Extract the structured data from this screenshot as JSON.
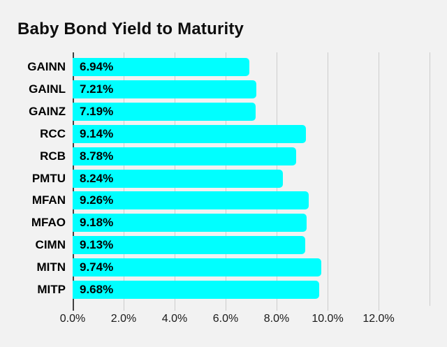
{
  "title": "Baby Bond Yield to Maturity",
  "colors": {
    "background": "#f2f2f2",
    "bar": "#00ffff",
    "gridline": "#cccccc",
    "axis": "#424242",
    "text": "#000000"
  },
  "chart_data": {
    "type": "bar",
    "orientation": "horizontal",
    "title": "Baby Bond Yield to Maturity",
    "categories": [
      "GAINN",
      "GAINL",
      "GAINZ",
      "RCC",
      "RCB",
      "PMTU",
      "MFAN",
      "MFAO",
      "CIMN",
      "MITN",
      "MITP"
    ],
    "values": [
      6.94,
      7.21,
      7.19,
      9.14,
      8.78,
      8.24,
      9.26,
      9.18,
      9.13,
      9.74,
      9.68
    ],
    "value_labels": [
      "6.94%",
      "7.21%",
      "7.19%",
      "9.14%",
      "8.78%",
      "8.24%",
      "9.26%",
      "9.18%",
      "9.13%",
      "9.74%",
      "9.68%"
    ],
    "xlabel": "",
    "ylabel": "",
    "xlim": [
      0,
      14
    ],
    "x_tick_values": [
      0,
      2,
      4,
      6,
      8,
      10,
      12
    ],
    "x_ticks": [
      "0.0%",
      "2.0%",
      "4.0%",
      "6.0%",
      "8.0%",
      "10.0%",
      "12.0%"
    ],
    "grid_values": [
      0,
      2,
      4,
      6,
      8,
      10,
      12,
      14
    ],
    "grid": true,
    "legend": false,
    "bar_color": "#00ffff",
    "value_labels_position": "inside-left"
  }
}
